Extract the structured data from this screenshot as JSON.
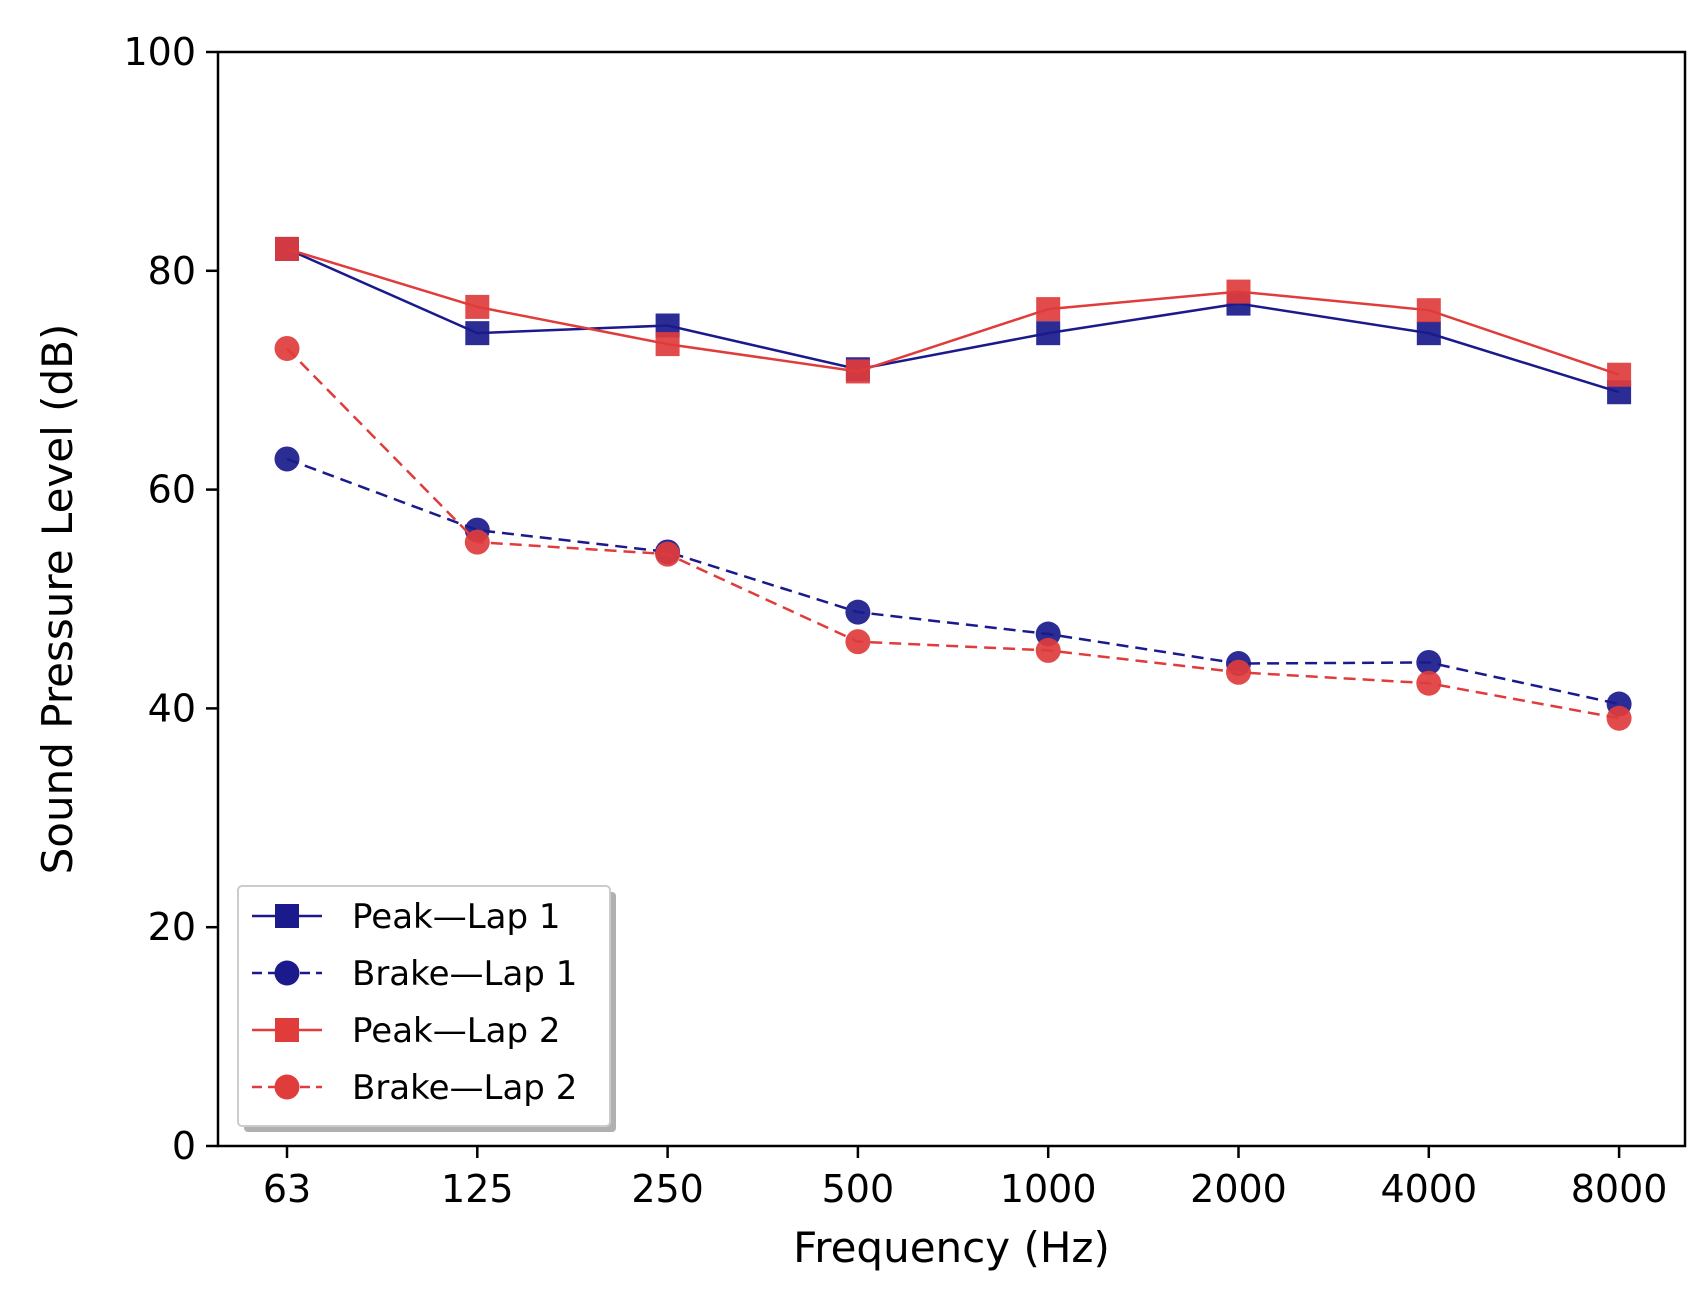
{
  "chart_data": {
    "type": "line",
    "title": "",
    "xlabel": "Frequency (Hz)",
    "ylabel": "Sound Pressure Level (dB)",
    "categories": [
      "63",
      "125",
      "250",
      "500",
      "1000",
      "2000",
      "4000",
      "8000"
    ],
    "ylim": [
      0,
      100
    ],
    "yticks": [
      "0",
      "20",
      "40",
      "60",
      "80",
      "100"
    ],
    "grid": false,
    "legend_position": "lower-left",
    "series": [
      {
        "name": "Peak—Lap 1",
        "color": "#1a1a8c",
        "marker": "square",
        "line_style": "solid",
        "values": [
          82,
          74.3,
          75,
          71,
          74.3,
          77,
          74.3,
          68.9
        ]
      },
      {
        "name": "Brake—Lap 1",
        "color": "#1a1a8c",
        "marker": "circle",
        "line_style": "dashed",
        "values": [
          62.8,
          56.3,
          54.3,
          48.8,
          46.8,
          44.1,
          44.2,
          40.4
        ]
      },
      {
        "name": "Peak—Lap 2",
        "color": "#e03c3c",
        "marker": "square",
        "line_style": "solid",
        "values": [
          82,
          76.7,
          73.3,
          70.8,
          76.5,
          78.1,
          76.4,
          70.5
        ]
      },
      {
        "name": "Brake—Lap 2",
        "color": "#e03c3c",
        "marker": "circle",
        "line_style": "dashed",
        "values": [
          72.9,
          55.2,
          54.1,
          46.1,
          45.3,
          43.3,
          42.3,
          39.1
        ]
      }
    ]
  }
}
